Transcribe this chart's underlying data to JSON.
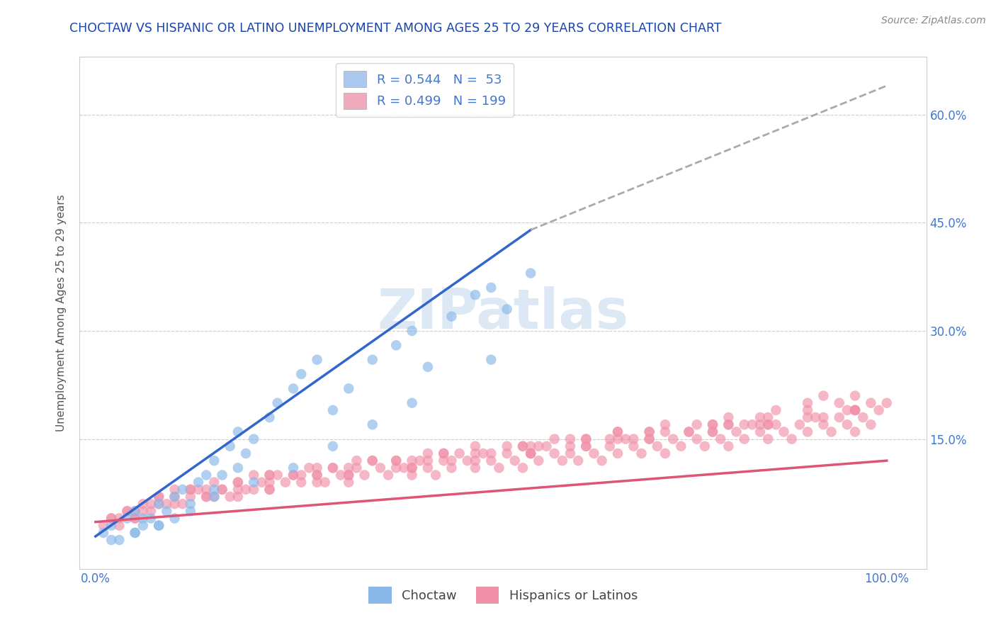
{
  "title": "CHOCTAW VS HISPANIC OR LATINO UNEMPLOYMENT AMONG AGES 25 TO 29 YEARS CORRELATION CHART",
  "source": "Source: ZipAtlas.com",
  "ylabel": "Unemployment Among Ages 25 to 29 years",
  "ytick_vals": [
    15,
    30,
    45,
    60
  ],
  "ytick_labels": [
    "15.0%",
    "30.0%",
    "45.0%",
    "60.0%"
  ],
  "xtick_vals": [
    0,
    100
  ],
  "xtick_labels": [
    "0.0%",
    "100.0%"
  ],
  "xlim": [
    -2,
    105
  ],
  "ylim": [
    -3,
    68
  ],
  "watermark": "ZIPatlas",
  "legend_entries": [
    {
      "label_r": "R = 0.544",
      "label_n": "N =  53",
      "color": "#adc8f0"
    },
    {
      "label_r": "R = 0.499",
      "label_n": "N = 199",
      "color": "#f0aabb"
    }
  ],
  "choctaw_color": "#88b8e8",
  "hispanic_color": "#f090a8",
  "choctaw_line_color": "#3366cc",
  "hispanic_line_color": "#e05575",
  "title_color": "#1a44aa",
  "axis_label_color": "#555555",
  "tick_label_color": "#4477cc",
  "grid_color": "#cccccc",
  "background_color": "#ffffff",
  "choctaw_scatter": {
    "x": [
      1,
      2,
      3,
      4,
      5,
      5,
      6,
      7,
      8,
      8,
      9,
      10,
      10,
      11,
      12,
      13,
      14,
      15,
      15,
      16,
      17,
      18,
      18,
      19,
      20,
      22,
      23,
      25,
      26,
      28,
      30,
      32,
      35,
      38,
      40,
      42,
      45,
      48,
      50,
      52,
      55,
      2,
      5,
      8,
      12,
      15,
      20,
      25,
      30,
      40,
      50,
      6,
      35
    ],
    "y": [
      2,
      3,
      1,
      4,
      5,
      2,
      3,
      4,
      3,
      6,
      5,
      7,
      4,
      8,
      6,
      9,
      10,
      8,
      12,
      10,
      14,
      11,
      16,
      13,
      15,
      18,
      20,
      22,
      24,
      26,
      19,
      22,
      26,
      28,
      30,
      25,
      32,
      35,
      36,
      33,
      38,
      1,
      2,
      3,
      5,
      7,
      9,
      11,
      14,
      20,
      26,
      4,
      17
    ]
  },
  "hispanic_scatter": {
    "x": [
      1,
      2,
      3,
      4,
      5,
      6,
      7,
      8,
      9,
      10,
      11,
      12,
      13,
      14,
      15,
      16,
      17,
      18,
      19,
      20,
      21,
      22,
      23,
      24,
      25,
      26,
      27,
      28,
      29,
      30,
      31,
      32,
      33,
      34,
      35,
      36,
      37,
      38,
      39,
      40,
      41,
      42,
      43,
      44,
      45,
      46,
      47,
      48,
      49,
      50,
      51,
      52,
      53,
      54,
      55,
      56,
      57,
      58,
      59,
      60,
      61,
      62,
      63,
      64,
      65,
      66,
      67,
      68,
      69,
      70,
      71,
      72,
      73,
      74,
      75,
      76,
      77,
      78,
      79,
      80,
      81,
      82,
      83,
      84,
      85,
      86,
      87,
      88,
      89,
      90,
      91,
      92,
      93,
      94,
      95,
      96,
      97,
      98,
      99,
      100,
      3,
      8,
      12,
      18,
      25,
      32,
      40,
      48,
      55,
      62,
      70,
      78,
      85,
      92,
      5,
      14,
      22,
      33,
      44,
      55,
      65,
      75,
      85,
      95,
      7,
      18,
      30,
      42,
      54,
      66,
      78,
      90,
      10,
      22,
      35,
      48,
      60,
      72,
      84,
      96,
      4,
      16,
      28,
      42,
      56,
      70,
      84,
      96,
      2,
      14,
      26,
      40,
      54,
      68,
      82,
      96,
      6,
      18,
      32,
      48,
      62,
      76,
      90,
      8,
      22,
      38,
      52,
      66,
      80,
      94,
      12,
      28,
      44,
      58,
      72,
      86,
      5,
      22,
      38,
      55,
      70,
      85,
      98,
      15,
      32,
      50,
      66,
      80,
      92,
      10,
      28,
      45,
      62,
      78,
      90,
      20,
      40,
      60,
      80,
      96
    ],
    "y": [
      3,
      4,
      3,
      5,
      4,
      6,
      5,
      7,
      6,
      8,
      6,
      7,
      8,
      7,
      9,
      8,
      7,
      9,
      8,
      10,
      9,
      8,
      10,
      9,
      10,
      9,
      11,
      10,
      9,
      11,
      10,
      9,
      11,
      10,
      12,
      11,
      10,
      12,
      11,
      10,
      12,
      11,
      10,
      12,
      11,
      13,
      12,
      11,
      13,
      12,
      11,
      13,
      12,
      11,
      13,
      12,
      14,
      13,
      12,
      13,
      12,
      14,
      13,
      12,
      14,
      13,
      15,
      14,
      13,
      15,
      14,
      13,
      15,
      14,
      16,
      15,
      14,
      16,
      15,
      14,
      16,
      15,
      17,
      16,
      15,
      17,
      16,
      15,
      17,
      16,
      18,
      17,
      16,
      18,
      17,
      16,
      18,
      17,
      19,
      20,
      4,
      7,
      8,
      7,
      10,
      10,
      11,
      12,
      13,
      14,
      15,
      16,
      17,
      18,
      5,
      8,
      10,
      12,
      13,
      14,
      15,
      16,
      17,
      19,
      6,
      9,
      11,
      13,
      14,
      15,
      17,
      18,
      7,
      10,
      12,
      14,
      15,
      16,
      18,
      19,
      5,
      8,
      10,
      12,
      14,
      16,
      17,
      19,
      4,
      7,
      10,
      12,
      14,
      15,
      17,
      19,
      5,
      8,
      11,
      13,
      15,
      17,
      19,
      6,
      9,
      12,
      14,
      16,
      17,
      20,
      8,
      11,
      13,
      15,
      17,
      19,
      4,
      8,
      11,
      13,
      16,
      18,
      20,
      7,
      10,
      13,
      16,
      18,
      21,
      6,
      9,
      12,
      15,
      17,
      20,
      8,
      11,
      14,
      17,
      21
    ]
  },
  "choctaw_trendline": {
    "x_start": 0,
    "y_start": 1.5,
    "x_end": 55,
    "y_end": 44
  },
  "choctaw_trendline_ext": {
    "x_start": 55,
    "y_start": 44,
    "x_end": 100,
    "y_end": 64
  },
  "hispanic_trendline": {
    "x_start": 0,
    "y_start": 3.5,
    "x_end": 100,
    "y_end": 12
  },
  "title_fontsize": 12.5,
  "axis_label_fontsize": 11,
  "tick_fontsize": 12,
  "legend_fontsize": 13,
  "bottom_legend_labels": [
    "Choctaw",
    "Hispanics or Latinos"
  ]
}
